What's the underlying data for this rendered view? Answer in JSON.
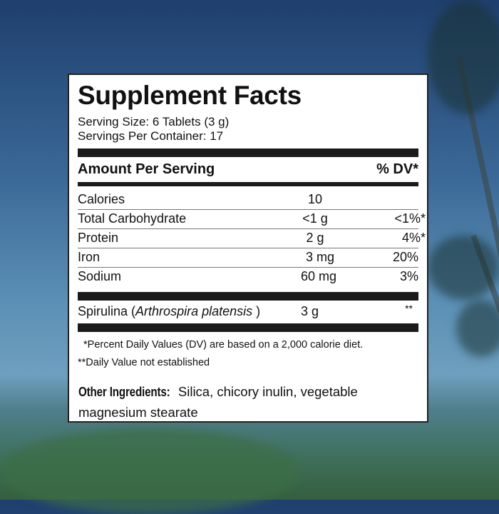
{
  "title": "Supplement Facts",
  "serving_size": "Serving Size: 6 Tablets (3 g)",
  "servings_per_container": "Servings Per Container:  17",
  "header": {
    "amount": "Amount Per Serving",
    "dv": "% DV*"
  },
  "nutrients": [
    {
      "name": "Calories",
      "amount": "10",
      "dv": ""
    },
    {
      "name": "Total Carbohydrate",
      "amount": "<1 g",
      "dv": "<1%*"
    },
    {
      "name": "Protein",
      "amount": "2 g",
      "dv": "4%*"
    },
    {
      "name": "Iron",
      "amount": "3 mg",
      "dv": "20%"
    },
    {
      "name": "Sodium",
      "amount": "60 mg",
      "dv": "3%"
    }
  ],
  "spirulina": {
    "name": "Spirulina (",
    "latin": "Arthrospira platensis",
    "close": " )",
    "amount": "3 g",
    "dv": "**"
  },
  "footnotes": [
    "*Percent Daily Values (DV) are based on a 2,000 calorie diet.",
    "**Daily Value not established"
  ],
  "other_ingredients": {
    "label": "Other Ingredients:",
    "line1": " Silica, chicory inulin, vegetable",
    "line2": "magnesium stearate"
  }
}
